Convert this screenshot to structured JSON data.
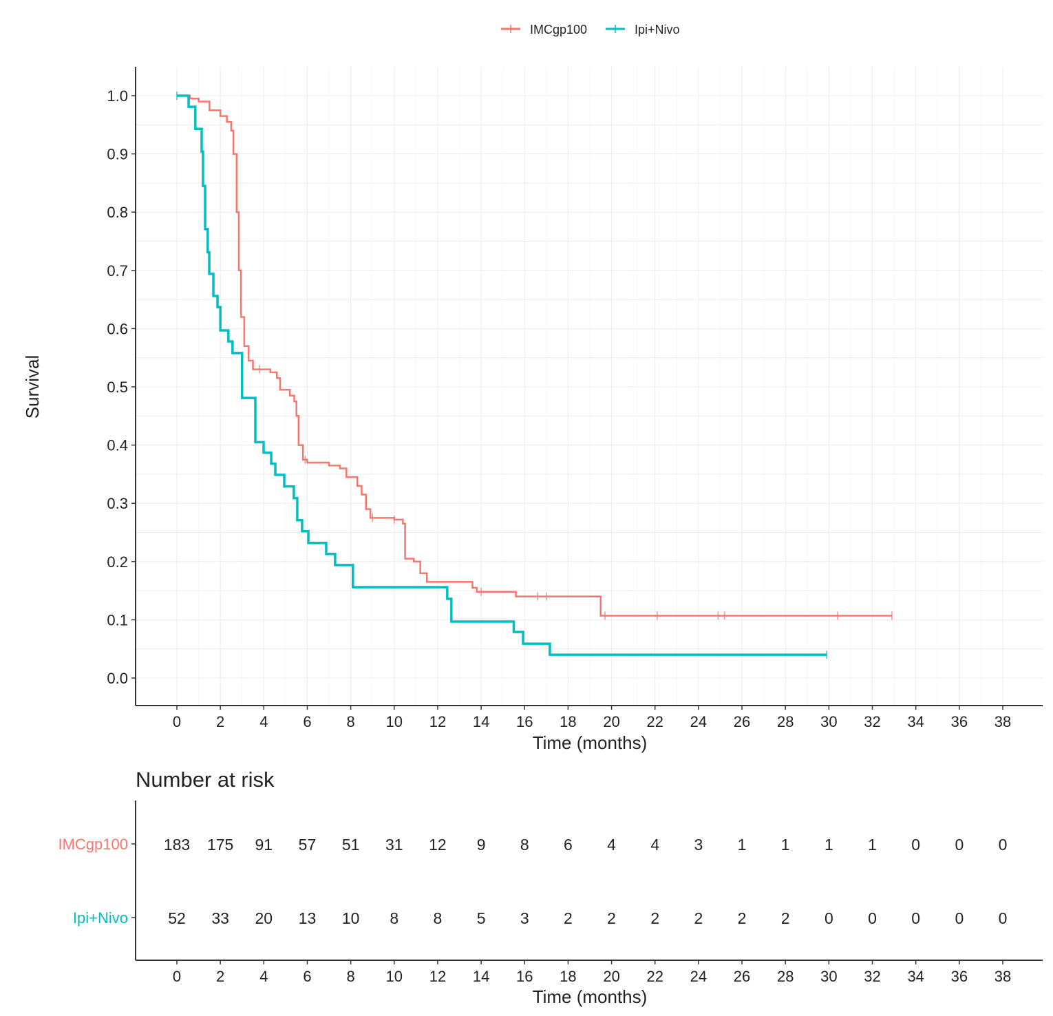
{
  "chart_data": [
    {
      "type": "line",
      "subtype": "kaplan-meier step",
      "xlabel": "Time (months)",
      "ylabel": "Survival",
      "xlim": [
        0,
        38
      ],
      "ylim": [
        0,
        1
      ],
      "xticks": [
        "0",
        "2",
        "4",
        "6",
        "8",
        "10",
        "12",
        "14",
        "16",
        "18",
        "20",
        "22",
        "24",
        "26",
        "28",
        "30",
        "32",
        "34",
        "36",
        "38"
      ],
      "yticks": [
        "0.0",
        "0.1",
        "0.2",
        "0.3",
        "0.4",
        "0.5",
        "0.6",
        "0.7",
        "0.8",
        "0.9",
        "1.0"
      ],
      "grid": true,
      "legend_position": "top",
      "series": [
        {
          "name": "IMCgp100",
          "color": "#f8766d",
          "points": [
            [
              0,
              1
            ],
            [
              0.6,
              0.995
            ],
            [
              1.0,
              0.99
            ],
            [
              1.5,
              0.975
            ],
            [
              2.0,
              0.965
            ],
            [
              2.3,
              0.955
            ],
            [
              2.5,
              0.94
            ],
            [
              2.6,
              0.9
            ],
            [
              2.75,
              0.8
            ],
            [
              2.85,
              0.7
            ],
            [
              2.95,
              0.62
            ],
            [
              3.1,
              0.57
            ],
            [
              3.3,
              0.545
            ],
            [
              3.5,
              0.53
            ],
            [
              4.3,
              0.525
            ],
            [
              4.6,
              0.515
            ],
            [
              4.75,
              0.495
            ],
            [
              5.2,
              0.485
            ],
            [
              5.4,
              0.475
            ],
            [
              5.5,
              0.45
            ],
            [
              5.6,
              0.4
            ],
            [
              5.8,
              0.375
            ],
            [
              6.0,
              0.37
            ],
            [
              7.0,
              0.365
            ],
            [
              7.5,
              0.36
            ],
            [
              7.8,
              0.345
            ],
            [
              8.3,
              0.33
            ],
            [
              8.5,
              0.315
            ],
            [
              8.7,
              0.29
            ],
            [
              8.9,
              0.275
            ],
            [
              10.0,
              0.272
            ],
            [
              10.4,
              0.265
            ],
            [
              10.5,
              0.205
            ],
            [
              10.9,
              0.2
            ],
            [
              11.2,
              0.18
            ],
            [
              11.5,
              0.165
            ],
            [
              13.6,
              0.155
            ],
            [
              13.8,
              0.148
            ],
            [
              15.6,
              0.14
            ],
            [
              19.5,
              0.107
            ]
          ],
          "end": 32.9,
          "censored": [
            3.8,
            5.9,
            9.0,
            10.0,
            14.0,
            16.6,
            17.0,
            19.7,
            22.1,
            24.9,
            25.2,
            30.4,
            32.9
          ]
        },
        {
          "name": "Ipi+Nivo",
          "color": "#00bfc4",
          "points": [
            [
              0,
              1
            ],
            [
              0.54,
              0.981
            ],
            [
              0.85,
              0.943
            ],
            [
              1.14,
              0.904
            ],
            [
              1.2,
              0.845
            ],
            [
              1.3,
              0.771
            ],
            [
              1.42,
              0.731
            ],
            [
              1.49,
              0.694
            ],
            [
              1.68,
              0.656
            ],
            [
              1.87,
              0.637
            ],
            [
              2.0,
              0.597
            ],
            [
              2.37,
              0.578
            ],
            [
              2.56,
              0.558
            ],
            [
              3.0,
              0.481
            ],
            [
              3.61,
              0.405
            ],
            [
              3.99,
              0.387
            ],
            [
              4.34,
              0.368
            ],
            [
              4.53,
              0.349
            ],
            [
              4.94,
              0.329
            ],
            [
              5.38,
              0.309
            ],
            [
              5.54,
              0.271
            ],
            [
              5.76,
              0.252
            ],
            [
              6.05,
              0.232
            ],
            [
              6.87,
              0.213
            ],
            [
              7.28,
              0.194
            ],
            [
              8.1,
              0.156
            ],
            [
              12.44,
              0.136
            ],
            [
              12.63,
              0.097
            ],
            [
              15.5,
              0.079
            ],
            [
              15.93,
              0.059
            ],
            [
              17.16,
              0.04
            ]
          ],
          "end": 29.9,
          "censored": [
            0,
            29.9
          ]
        }
      ]
    },
    {
      "type": "table",
      "title": "Number at risk",
      "xlabel": "Time (months)",
      "columns": [
        "0",
        "2",
        "4",
        "6",
        "8",
        "10",
        "12",
        "14",
        "16",
        "18",
        "20",
        "22",
        "24",
        "26",
        "28",
        "30",
        "32",
        "34",
        "36",
        "38"
      ],
      "rows": [
        {
          "name": "IMCgp100",
          "color": "#f8766d",
          "values": [
            "183",
            "175",
            "91",
            "57",
            "51",
            "31",
            "12",
            "9",
            "8",
            "6",
            "4",
            "4",
            "3",
            "1",
            "1",
            "1",
            "1",
            "0",
            "0",
            "0"
          ]
        },
        {
          "name": "Ipi+Nivo",
          "color": "#00bfc4",
          "values": [
            "52",
            "33",
            "20",
            "13",
            "10",
            "8",
            "8",
            "5",
            "3",
            "2",
            "2",
            "2",
            "2",
            "2",
            "2",
            "0",
            "0",
            "0",
            "0",
            "0"
          ]
        }
      ]
    }
  ]
}
